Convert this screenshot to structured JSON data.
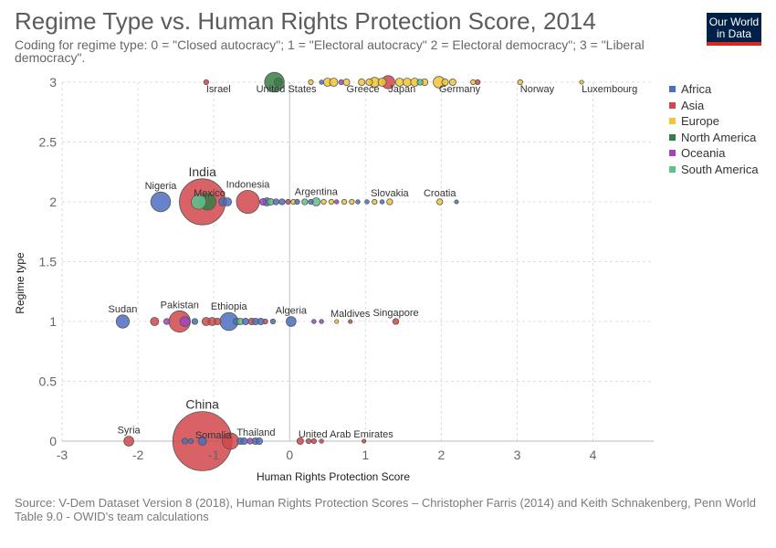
{
  "title": "Regime Type vs. Human Rights Protection Score, 2014",
  "subtitle": "Coding for regime type: 0 = \"Closed autocracy\"; 1 = \"Electoral autocracy\" 2 = Electoral democracy\"; 3 = \"Liberal democracy\".",
  "logo": {
    "line1": "Our World",
    "line2": "in Data",
    "bg_color": "#002147",
    "accent_color": "#d42b21"
  },
  "source": "Source: V-Dem Dataset Version 8 (2018), Human Rights Protection Scores – Christopher Farris (2014) and Keith Schnakenberg, Penn World Table 9.0 - OWID's team calculations",
  "chart_data": {
    "type": "scatter",
    "title": "Regime Type vs. Human Rights Protection Score, 2014",
    "xlabel": "Human Rights Protection Score",
    "ylabel": "Regime type",
    "xlim": [
      -3,
      4.8
    ],
    "ylim": [
      0,
      3
    ],
    "xticks": [
      -3,
      -2,
      -1,
      0,
      1,
      2,
      3,
      4
    ],
    "yticks": [
      0,
      0.5,
      1,
      1.5,
      2,
      2.5,
      3
    ],
    "grid": true,
    "legend_position": "right",
    "colors": {
      "Africa": "#4c6fc1",
      "Asia": "#d1474b",
      "Europe": "#f3c532",
      "North America": "#3a7d44",
      "Oceania": "#a243c2",
      "South America": "#5cc38c"
    },
    "legend": [
      "Africa",
      "Asia",
      "Europe",
      "North America",
      "Oceania",
      "South America"
    ],
    "labeled_points": [
      {
        "label": "Israel",
        "x": -1.1,
        "y": 3,
        "region": "Asia",
        "size": 1.5
      },
      {
        "label": "United States",
        "x": -0.2,
        "y": 3,
        "region": "North America",
        "size": 6
      },
      {
        "label": "Greece",
        "x": 0.75,
        "y": 3,
        "region": "Europe",
        "size": 2
      },
      {
        "label": "Japan",
        "x": 1.3,
        "y": 3,
        "region": "Asia",
        "size": 4
      },
      {
        "label": "Germany",
        "x": 1.97,
        "y": 3,
        "region": "Europe",
        "size": 3.5
      },
      {
        "label": "Norway",
        "x": 3.04,
        "y": 3,
        "region": "Europe",
        "size": 1.5
      },
      {
        "label": "Luxembourg",
        "x": 3.85,
        "y": 3,
        "region": "Europe",
        "size": 1.2
      },
      {
        "label": "India",
        "x": -1.15,
        "y": 2,
        "region": "Asia",
        "size": 14
      },
      {
        "label": "Nigeria",
        "x": -1.7,
        "y": 2,
        "region": "Africa",
        "size": 6
      },
      {
        "label": "Mexico",
        "x": -1.08,
        "y": 2,
        "region": "North America",
        "size": 5
      },
      {
        "label": "Indonesia",
        "x": -0.55,
        "y": 2,
        "region": "Asia",
        "size": 7
      },
      {
        "label": "Argentina",
        "x": 0.35,
        "y": 2,
        "region": "South America",
        "size": 2.5
      },
      {
        "label": "Slovakia",
        "x": 1.32,
        "y": 2,
        "region": "Europe",
        "size": 1.8
      },
      {
        "label": "Croatia",
        "x": 1.98,
        "y": 2,
        "region": "Europe",
        "size": 1.8
      },
      {
        "label": "Sudan",
        "x": -2.2,
        "y": 1,
        "region": "Africa",
        "size": 4
      },
      {
        "label": "Pakistan",
        "x": -1.45,
        "y": 1,
        "region": "Asia",
        "size": 6.5
      },
      {
        "label": "Ethiopia",
        "x": -0.8,
        "y": 1,
        "region": "Africa",
        "size": 5.5
      },
      {
        "label": "Algeria",
        "x": 0.02,
        "y": 1,
        "region": "Africa",
        "size": 3
      },
      {
        "label": "Maldives",
        "x": 0.8,
        "y": 1,
        "region": "Asia",
        "size": 1.2
      },
      {
        "label": "Singapore",
        "x": 1.4,
        "y": 1,
        "region": "Asia",
        "size": 1.8
      },
      {
        "label": "China",
        "x": -1.15,
        "y": 0,
        "region": "Asia",
        "size": 18
      },
      {
        "label": "Syria",
        "x": -2.12,
        "y": 0,
        "region": "Asia",
        "size": 3
      },
      {
        "label": "Somalia",
        "x": -1.15,
        "y": 0,
        "region": "Africa",
        "size": 2.5
      },
      {
        "label": "Thailand",
        "x": -0.78,
        "y": 0,
        "region": "Asia",
        "size": 5
      },
      {
        "label": "United Arab Emirates",
        "x": 0.14,
        "y": 0,
        "region": "Asia",
        "size": 2
      }
    ],
    "points": [
      {
        "x": -0.15,
        "y": 3,
        "region": "North America",
        "size": 2.5
      },
      {
        "x": 0.28,
        "y": 3,
        "region": "Europe",
        "size": 1.5
      },
      {
        "x": 0.42,
        "y": 3,
        "region": "Africa",
        "size": 1.3
      },
      {
        "x": 0.5,
        "y": 3,
        "region": "Europe",
        "size": 2.5
      },
      {
        "x": 0.58,
        "y": 3,
        "region": "Europe",
        "size": 2.5
      },
      {
        "x": 0.68,
        "y": 3,
        "region": "Oceania",
        "size": 1.5
      },
      {
        "x": 0.95,
        "y": 3,
        "region": "Europe",
        "size": 2
      },
      {
        "x": 1.05,
        "y": 3,
        "region": "Europe",
        "size": 2
      },
      {
        "x": 1.12,
        "y": 3,
        "region": "Europe",
        "size": 3
      },
      {
        "x": 1.22,
        "y": 3,
        "region": "Europe",
        "size": 2.5
      },
      {
        "x": 1.45,
        "y": 3,
        "region": "Europe",
        "size": 2.5
      },
      {
        "x": 1.55,
        "y": 3,
        "region": "Europe",
        "size": 2.5
      },
      {
        "x": 1.65,
        "y": 3,
        "region": "Europe",
        "size": 2.5
      },
      {
        "x": 1.72,
        "y": 3,
        "region": "South America",
        "size": 1.8
      },
      {
        "x": 1.78,
        "y": 3,
        "region": "Europe",
        "size": 2
      },
      {
        "x": 2.05,
        "y": 3,
        "region": "Europe",
        "size": 2
      },
      {
        "x": 2.15,
        "y": 3,
        "region": "Europe",
        "size": 2
      },
      {
        "x": 2.42,
        "y": 3,
        "region": "Europe",
        "size": 1.5
      },
      {
        "x": 2.48,
        "y": 3,
        "region": "Asia",
        "size": 1.5
      },
      {
        "x": -1.2,
        "y": 2,
        "region": "South America",
        "size": 4.5
      },
      {
        "x": -0.88,
        "y": 2,
        "region": "Africa",
        "size": 2.5
      },
      {
        "x": -0.82,
        "y": 2,
        "region": "Africa",
        "size": 2.5
      },
      {
        "x": -0.35,
        "y": 2,
        "region": "Oceania",
        "size": 2
      },
      {
        "x": -0.3,
        "y": 2,
        "region": "Africa",
        "size": 2.5
      },
      {
        "x": -0.25,
        "y": 2,
        "region": "South America",
        "size": 2
      },
      {
        "x": -0.18,
        "y": 2,
        "region": "Africa",
        "size": 1.8
      },
      {
        "x": -0.1,
        "y": 2,
        "region": "Africa",
        "size": 1.8
      },
      {
        "x": -0.02,
        "y": 2,
        "region": "Asia",
        "size": 1.5
      },
      {
        "x": 0.05,
        "y": 2,
        "region": "Europe",
        "size": 1.5
      },
      {
        "x": 0.1,
        "y": 2,
        "region": "Africa",
        "size": 1.5
      },
      {
        "x": 0.2,
        "y": 2,
        "region": "South America",
        "size": 1.8
      },
      {
        "x": 0.28,
        "y": 2,
        "region": "Africa",
        "size": 1.5
      },
      {
        "x": 0.45,
        "y": 2,
        "region": "Europe",
        "size": 1.5
      },
      {
        "x": 0.55,
        "y": 2,
        "region": "Europe",
        "size": 1.5
      },
      {
        "x": 0.62,
        "y": 2,
        "region": "Oceania",
        "size": 1.3
      },
      {
        "x": 0.72,
        "y": 2,
        "region": "Europe",
        "size": 1.5
      },
      {
        "x": 0.82,
        "y": 2,
        "region": "Europe",
        "size": 1.5
      },
      {
        "x": 0.9,
        "y": 2,
        "region": "Africa",
        "size": 1.3
      },
      {
        "x": 1.02,
        "y": 2,
        "region": "Africa",
        "size": 1.3
      },
      {
        "x": 1.12,
        "y": 2,
        "region": "Europe",
        "size": 1.5
      },
      {
        "x": 1.22,
        "y": 2,
        "region": "Africa",
        "size": 1.3
      },
      {
        "x": 2.2,
        "y": 2,
        "region": "Africa",
        "size": 1.2
      },
      {
        "x": -1.78,
        "y": 1,
        "region": "Asia",
        "size": 2.5
      },
      {
        "x": -1.62,
        "y": 1,
        "region": "Oceania",
        "size": 1.8
      },
      {
        "x": -1.38,
        "y": 1,
        "region": "Oceania",
        "size": 3
      },
      {
        "x": -1.25,
        "y": 1,
        "region": "Africa",
        "size": 1.8
      },
      {
        "x": -1.1,
        "y": 1,
        "region": "Asia",
        "size": 2.5
      },
      {
        "x": -1.02,
        "y": 1,
        "region": "Asia",
        "size": 2.5
      },
      {
        "x": -0.95,
        "y": 1,
        "region": "Asia",
        "size": 2
      },
      {
        "x": -0.7,
        "y": 1,
        "region": "Africa",
        "size": 2
      },
      {
        "x": -0.65,
        "y": 1,
        "region": "South America",
        "size": 2
      },
      {
        "x": -0.58,
        "y": 1,
        "region": "Africa",
        "size": 2
      },
      {
        "x": -0.5,
        "y": 1,
        "region": "Asia",
        "size": 2
      },
      {
        "x": -0.45,
        "y": 1,
        "region": "Africa",
        "size": 2
      },
      {
        "x": -0.38,
        "y": 1,
        "region": "Africa",
        "size": 2
      },
      {
        "x": -0.32,
        "y": 1,
        "region": "Asia",
        "size": 1.5
      },
      {
        "x": -0.22,
        "y": 1,
        "region": "Africa",
        "size": 1.5
      },
      {
        "x": 0.32,
        "y": 1,
        "region": "Oceania",
        "size": 1.3
      },
      {
        "x": 0.42,
        "y": 1,
        "region": "Oceania",
        "size": 1.3
      },
      {
        "x": 0.62,
        "y": 1,
        "region": "Europe",
        "size": 1.2
      },
      {
        "x": -1.38,
        "y": 0,
        "region": "Africa",
        "size": 1.8
      },
      {
        "x": -1.3,
        "y": 0,
        "region": "Africa",
        "size": 1.5
      },
      {
        "x": -0.65,
        "y": 0,
        "region": "Africa",
        "size": 2
      },
      {
        "x": -0.6,
        "y": 0,
        "region": "Africa",
        "size": 2
      },
      {
        "x": -0.52,
        "y": 0,
        "region": "Oceania",
        "size": 1.8
      },
      {
        "x": -0.45,
        "y": 0,
        "region": "Africa",
        "size": 2
      },
      {
        "x": -0.4,
        "y": 0,
        "region": "Africa",
        "size": 2
      },
      {
        "x": 0.25,
        "y": 0,
        "region": "Asia",
        "size": 1.5
      },
      {
        "x": 0.32,
        "y": 0,
        "region": "Asia",
        "size": 1.5
      },
      {
        "x": 0.42,
        "y": 0,
        "region": "Asia",
        "size": 1.3
      },
      {
        "x": 0.98,
        "y": 0,
        "region": "Asia",
        "size": 1.2
      }
    ]
  }
}
